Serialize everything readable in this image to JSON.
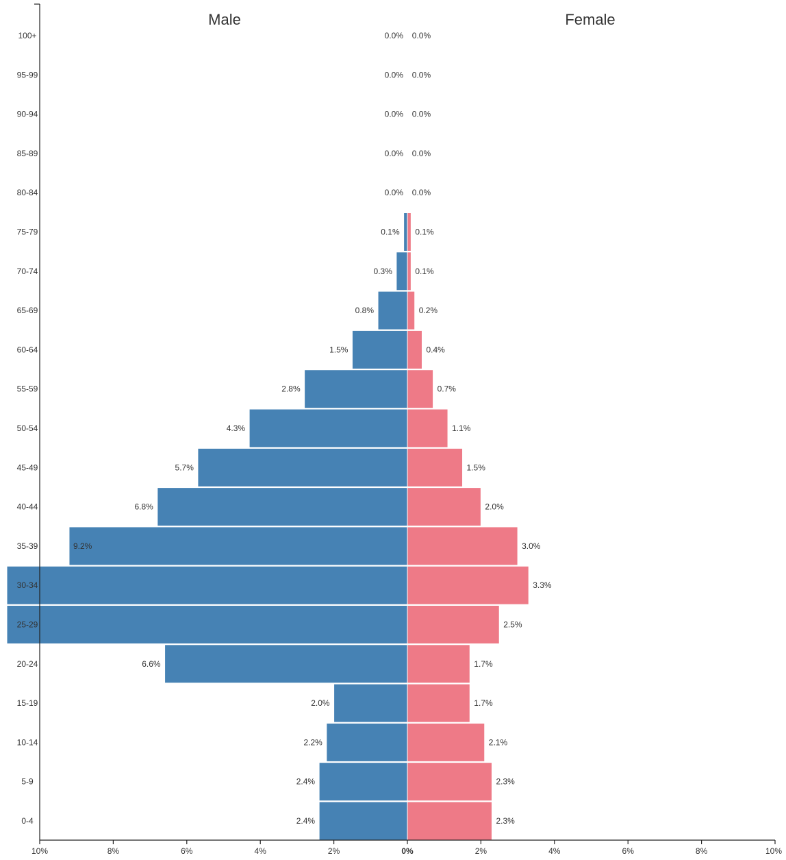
{
  "chart_data": {
    "type": "bar",
    "orientation": "horizontal-diverging",
    "categories": [
      "0-4",
      "5-9",
      "10-14",
      "15-19",
      "20-24",
      "25-29",
      "30-34",
      "35-39",
      "40-44",
      "45-49",
      "50-54",
      "55-59",
      "60-64",
      "65-69",
      "70-74",
      "75-79",
      "80-84",
      "85-89",
      "90-94",
      "95-99",
      "100+"
    ],
    "series": [
      {
        "name": "Male",
        "color": "#4682b4",
        "values": [
          2.4,
          2.4,
          2.2,
          2.0,
          6.6,
          11.0,
          11.0,
          9.2,
          6.8,
          5.7,
          4.3,
          2.8,
          1.5,
          0.8,
          0.3,
          0.1,
          0.0,
          0.0,
          0.0,
          0.0,
          0.0
        ],
        "labels": [
          "2.4%",
          "2.4%",
          "2.2%",
          "2.0%",
          "6.6%",
          "",
          "",
          "9.2%",
          "6.8%",
          "5.7%",
          "4.3%",
          "2.8%",
          "1.5%",
          "0.8%",
          "0.3%",
          "0.1%",
          "0.0%",
          "0.0%",
          "0.0%",
          "0.0%",
          "0.0%"
        ]
      },
      {
        "name": "Female",
        "color": "#ee7a87",
        "values": [
          2.3,
          2.3,
          2.1,
          1.7,
          1.7,
          2.5,
          3.3,
          3.0,
          2.0,
          1.5,
          1.1,
          0.7,
          0.4,
          0.2,
          0.1,
          0.1,
          0.0,
          0.0,
          0.0,
          0.0,
          0.0
        ],
        "labels": [
          "2.3%",
          "2.3%",
          "2.1%",
          "1.7%",
          "1.7%",
          "2.5%",
          "3.3%",
          "3.0%",
          "2.0%",
          "1.5%",
          "1.1%",
          "0.7%",
          "0.4%",
          "0.2%",
          "0.1%",
          "0.1%",
          "0.0%",
          "0.0%",
          "0.0%",
          "0.0%",
          "0.0%"
        ]
      }
    ],
    "x_axis": {
      "range_percent": [
        -10,
        10
      ],
      "ticks": [
        {
          "value": -10,
          "label": "10%"
        },
        {
          "value": -8,
          "label": "8%"
        },
        {
          "value": -6,
          "label": "6%"
        },
        {
          "value": -4,
          "label": "4%"
        },
        {
          "value": -2,
          "label": "2%"
        },
        {
          "value": 0,
          "label": "0%"
        },
        {
          "value": 2,
          "label": "2%"
        },
        {
          "value": 4,
          "label": "4%"
        },
        {
          "value": 6,
          "label": "6%"
        },
        {
          "value": 8,
          "label": "8%"
        },
        {
          "value": 10,
          "label": "10%"
        }
      ]
    },
    "side_titles": {
      "left": "Male",
      "right": "Female"
    },
    "grid": false,
    "title": "",
    "xlabel": "",
    "ylabel": ""
  }
}
